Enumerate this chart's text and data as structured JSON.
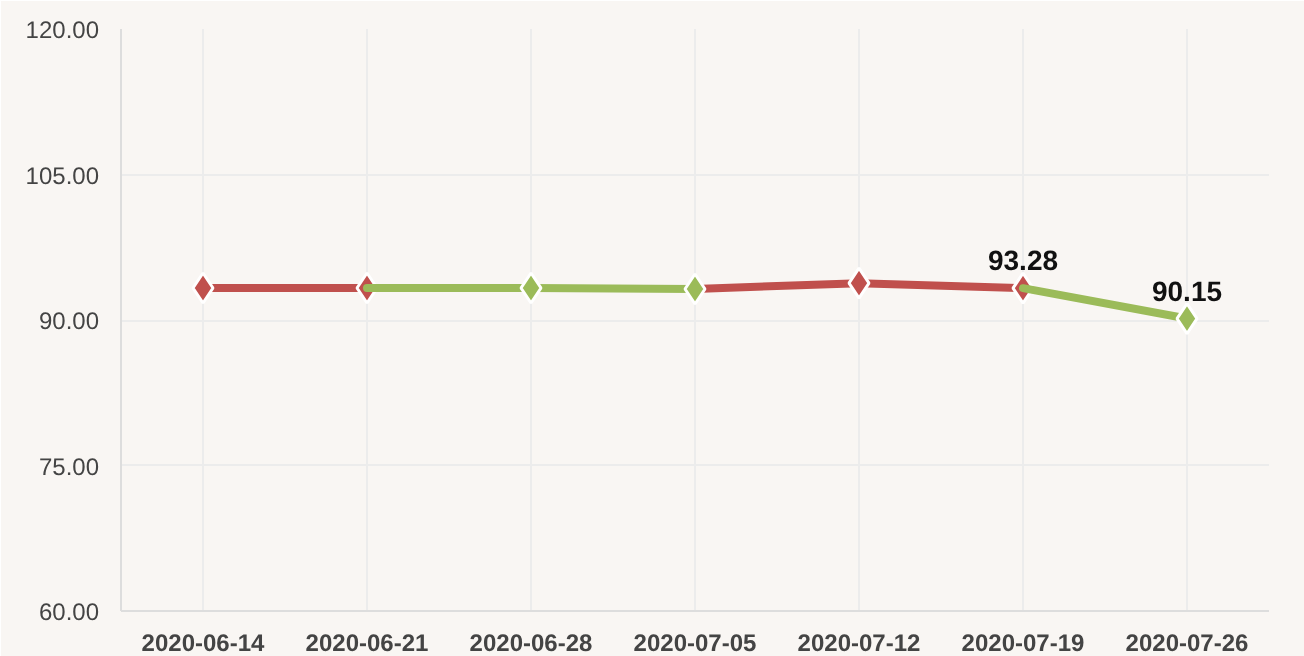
{
  "chart_data": {
    "type": "line",
    "categories": [
      "2020-06-14",
      "2020-06-21",
      "2020-06-28",
      "2020-07-05",
      "2020-07-12",
      "2020-07-19",
      "2020-07-26"
    ],
    "series": [
      {
        "color": "#c0504d",
        "values": [
          93.3,
          93.3,
          null,
          93.2,
          93.8,
          93.28,
          null
        ],
        "value_labels": [
          null,
          null,
          null,
          null,
          null,
          "93.28",
          null
        ]
      },
      {
        "color": "#9bbb59",
        "values": [
          null,
          93.3,
          93.3,
          93.2,
          null,
          93.28,
          90.15
        ],
        "value_labels": [
          null,
          null,
          null,
          null,
          null,
          null,
          "90.15"
        ]
      }
    ],
    "ylim": [
      60,
      120
    ],
    "yticks": [
      {
        "value": 60,
        "label": "60.00"
      },
      {
        "value": 75,
        "label": "75.00"
      },
      {
        "value": 90,
        "label": "90.00"
      },
      {
        "value": 105,
        "label": "105.00"
      },
      {
        "value": 120,
        "label": "120.00"
      }
    ],
    "grid": true,
    "marker": "diamond",
    "line_style": "solid"
  }
}
